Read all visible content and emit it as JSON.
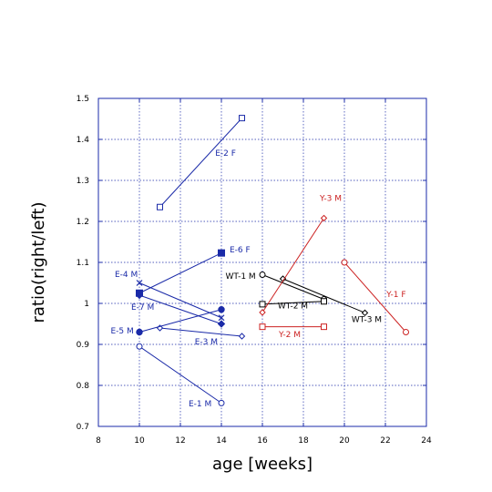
{
  "chart_data": {
    "type": "scatter",
    "title": "",
    "xlabel": "age [weeks]",
    "ylabel": "ratio(right/left)",
    "xlim": [
      8,
      24
    ],
    "ylim": [
      0.7,
      1.5
    ],
    "xticks": [
      "8",
      "10",
      "12",
      "14",
      "16",
      "18",
      "20",
      "22",
      "24"
    ],
    "yticks": [
      "0.7",
      "0.8",
      "0.9",
      "1",
      "1.1",
      "1.2",
      "1.3",
      "1.4",
      "1.5"
    ],
    "grid": true,
    "series": [
      {
        "name": "E-1 M",
        "color": "#1a2aa8",
        "marker": "open-circle",
        "x": [
          10,
          14
        ],
        "y": [
          0.895,
          0.757
        ]
      },
      {
        "name": "E-2 F",
        "color": "#1a2aa8",
        "marker": "open-square",
        "x": [
          11,
          15
        ],
        "y": [
          1.235,
          1.452
        ]
      },
      {
        "name": "E-3 M",
        "color": "#1a2aa8",
        "marker": "open-diamond",
        "x": [
          11,
          15
        ],
        "y": [
          0.94,
          0.92
        ]
      },
      {
        "name": "E-4 M",
        "color": "#1a2aa8",
        "marker": "x",
        "x": [
          10,
          14
        ],
        "y": [
          1.05,
          0.965
        ]
      },
      {
        "name": "E-5 M",
        "color": "#1a2aa8",
        "marker": "filled-circle",
        "x": [
          10,
          14
        ],
        "y": [
          0.93,
          0.985
        ]
      },
      {
        "name": "E-6 F",
        "color": "#1a2aa8",
        "marker": "filled-square",
        "x": [
          10,
          14
        ],
        "y": [
          1.025,
          1.123
        ]
      },
      {
        "name": "E-7 M",
        "color": "#1a2aa8",
        "marker": "filled-diamond",
        "x": [
          10,
          14
        ],
        "y": [
          1.02,
          0.95
        ]
      },
      {
        "name": "WT-1 M",
        "color": "#000000",
        "marker": "open-circle",
        "x": [
          16,
          19
        ],
        "y": [
          1.07,
          1.01
        ]
      },
      {
        "name": "WT-2 M",
        "color": "#000000",
        "marker": "open-square",
        "x": [
          16,
          19
        ],
        "y": [
          0.998,
          1.005
        ]
      },
      {
        "name": "WT-3 M",
        "color": "#000000",
        "marker": "open-diamond",
        "x": [
          17,
          21
        ],
        "y": [
          1.06,
          0.977
        ]
      },
      {
        "name": "Y-1 F",
        "color": "#cc2222",
        "marker": "open-circle",
        "x": [
          20,
          23
        ],
        "y": [
          1.1,
          0.93
        ]
      },
      {
        "name": "Y-2 M",
        "color": "#cc2222",
        "marker": "open-square",
        "x": [
          16,
          19
        ],
        "y": [
          0.943,
          0.943
        ]
      },
      {
        "name": "Y-3 M",
        "color": "#cc2222",
        "marker": "open-diamond",
        "x": [
          16,
          19
        ],
        "y": [
          0.978,
          1.208
        ]
      }
    ],
    "annotations": [
      {
        "text": "E-2 F",
        "color": "#1a2aa8",
        "x": 13.7,
        "y": 1.36
      },
      {
        "text": "E-6 F",
        "color": "#1a2aa8",
        "x": 14.4,
        "y": 1.125
      },
      {
        "text": "E-4 M",
        "color": "#1a2aa8",
        "x": 8.8,
        "y": 1.065
      },
      {
        "text": "E-7 M",
        "color": "#1a2aa8",
        "x": 9.6,
        "y": 0.985
      },
      {
        "text": "E-5 M",
        "color": "#1a2aa8",
        "x": 8.6,
        "y": 0.927
      },
      {
        "text": "E-3 M",
        "color": "#1a2aa8",
        "x": 12.7,
        "y": 0.9
      },
      {
        "text": "E-1 M",
        "color": "#1a2aa8",
        "x": 12.4,
        "y": 0.749
      },
      {
        "text": "WT-1 M",
        "color": "#000000",
        "x": 14.2,
        "y": 1.06
      },
      {
        "text": "WT-2 M",
        "color": "#000000",
        "x": 16.75,
        "y": 0.988
      },
      {
        "text": "WT-3 M",
        "color": "#000000",
        "x": 20.35,
        "y": 0.954
      },
      {
        "text": "Y-3 M",
        "color": "#cc2222",
        "x": 18.8,
        "y": 1.25
      },
      {
        "text": "Y-1 F",
        "color": "#cc2222",
        "x": 22.05,
        "y": 1.016
      },
      {
        "text": "Y-2 M",
        "color": "#cc2222",
        "x": 16.8,
        "y": 0.918
      }
    ]
  }
}
